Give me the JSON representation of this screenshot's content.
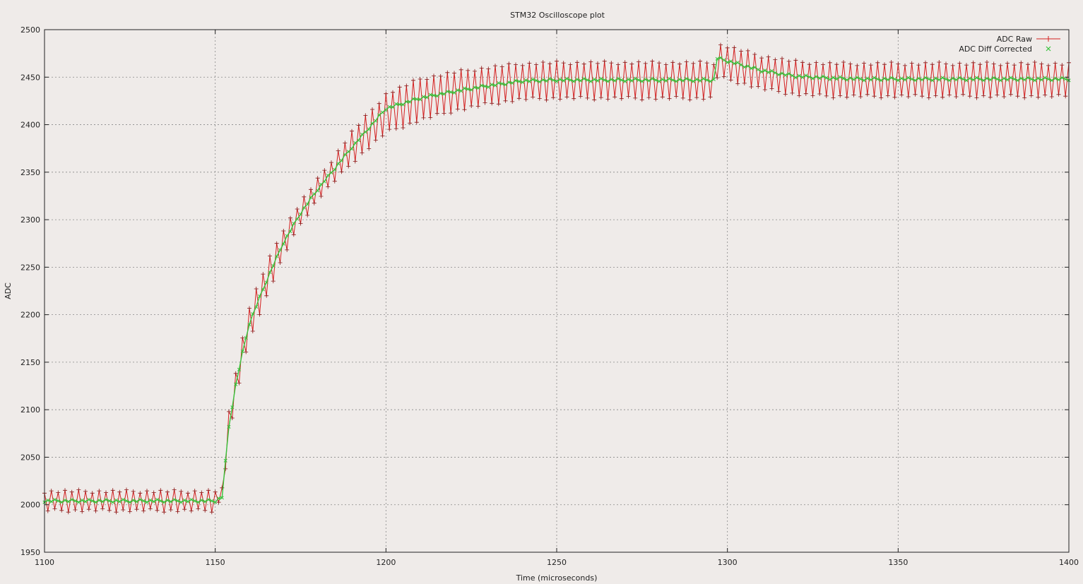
{
  "colors": {
    "raw": "#d42020",
    "corrected": "#36c23a",
    "grid": "#888888",
    "background": "#efebe9"
  },
  "chart_data": {
    "type": "line",
    "title": "STM32 Oscilloscope plot",
    "xlabel": "Time (microseconds)",
    "ylabel": "ADC",
    "xlim": [
      1100,
      1400
    ],
    "ylim": [
      1950,
      2500
    ],
    "xticks": [
      1100,
      1150,
      1200,
      1250,
      1300,
      1350,
      1400
    ],
    "yticks": [
      1950,
      2000,
      2050,
      2100,
      2150,
      2200,
      2250,
      2300,
      2350,
      2400,
      2450,
      2500
    ],
    "grid": true,
    "legend_position": "top-right",
    "sample_period_us": 1,
    "series": [
      {
        "name": "ADC Raw",
        "marker": "+",
        "line": true,
        "x": [
          1100,
          1110,
          1120,
          1130,
          1140,
          1150,
          1152,
          1154,
          1156,
          1158,
          1160,
          1163,
          1166,
          1170,
          1175,
          1180,
          1190,
          1200,
          1210,
          1220,
          1230,
          1240,
          1250,
          1260,
          1270,
          1280,
          1290,
          1296,
          1297,
          1300,
          1310,
          1320,
          1330,
          1340,
          1350,
          1360,
          1370,
          1380,
          1390,
          1400
        ],
        "y_low": [
          1994,
          1994,
          1994,
          1994,
          1994,
          1994,
          2010,
          2068,
          2112,
          2145,
          2173,
          2202,
          2228,
          2262,
          2296,
          2322,
          2360,
          2392,
          2405,
          2415,
          2422,
          2427,
          2428,
          2428,
          2428,
          2428,
          2428,
          2428,
          2450,
          2448,
          2438,
          2432,
          2430,
          2430,
          2430,
          2430,
          2430,
          2430,
          2430,
          2430
        ],
        "y_high": [
          2014,
          2014,
          2014,
          2014,
          2014,
          2014,
          2016,
          2098,
          2140,
          2175,
          2208,
          2235,
          2260,
          2290,
          2318,
          2342,
          2392,
          2432,
          2448,
          2455,
          2460,
          2464,
          2465,
          2465,
          2465,
          2465,
          2465,
          2465,
          2484,
          2482,
          2472,
          2466,
          2464,
          2464,
          2464,
          2464,
          2464,
          2464,
          2464,
          2464
        ]
      },
      {
        "name": "ADC Diff Corrected",
        "marker": "x",
        "line": true,
        "x": [
          1100,
          1110,
          1120,
          1130,
          1140,
          1150,
          1152,
          1154,
          1156,
          1158,
          1160,
          1163,
          1166,
          1170,
          1175,
          1180,
          1190,
          1200,
          1210,
          1220,
          1230,
          1240,
          1250,
          1260,
          1270,
          1280,
          1290,
          1296,
          1297,
          1300,
          1310,
          1320,
          1330,
          1340,
          1350,
          1360,
          1370,
          1380,
          1390,
          1400
        ],
        "y": [
          2004,
          2004,
          2004,
          2004,
          2004,
          2004,
          2008,
          2082,
          2126,
          2160,
          2191,
          2218,
          2244,
          2276,
          2307,
          2332,
          2376,
          2417,
          2428,
          2435,
          2441,
          2446,
          2447,
          2447,
          2447,
          2447,
          2447,
          2447,
          2470,
          2467,
          2457,
          2451,
          2449,
          2448,
          2448,
          2448,
          2448,
          2448,
          2448,
          2448
        ]
      }
    ]
  }
}
